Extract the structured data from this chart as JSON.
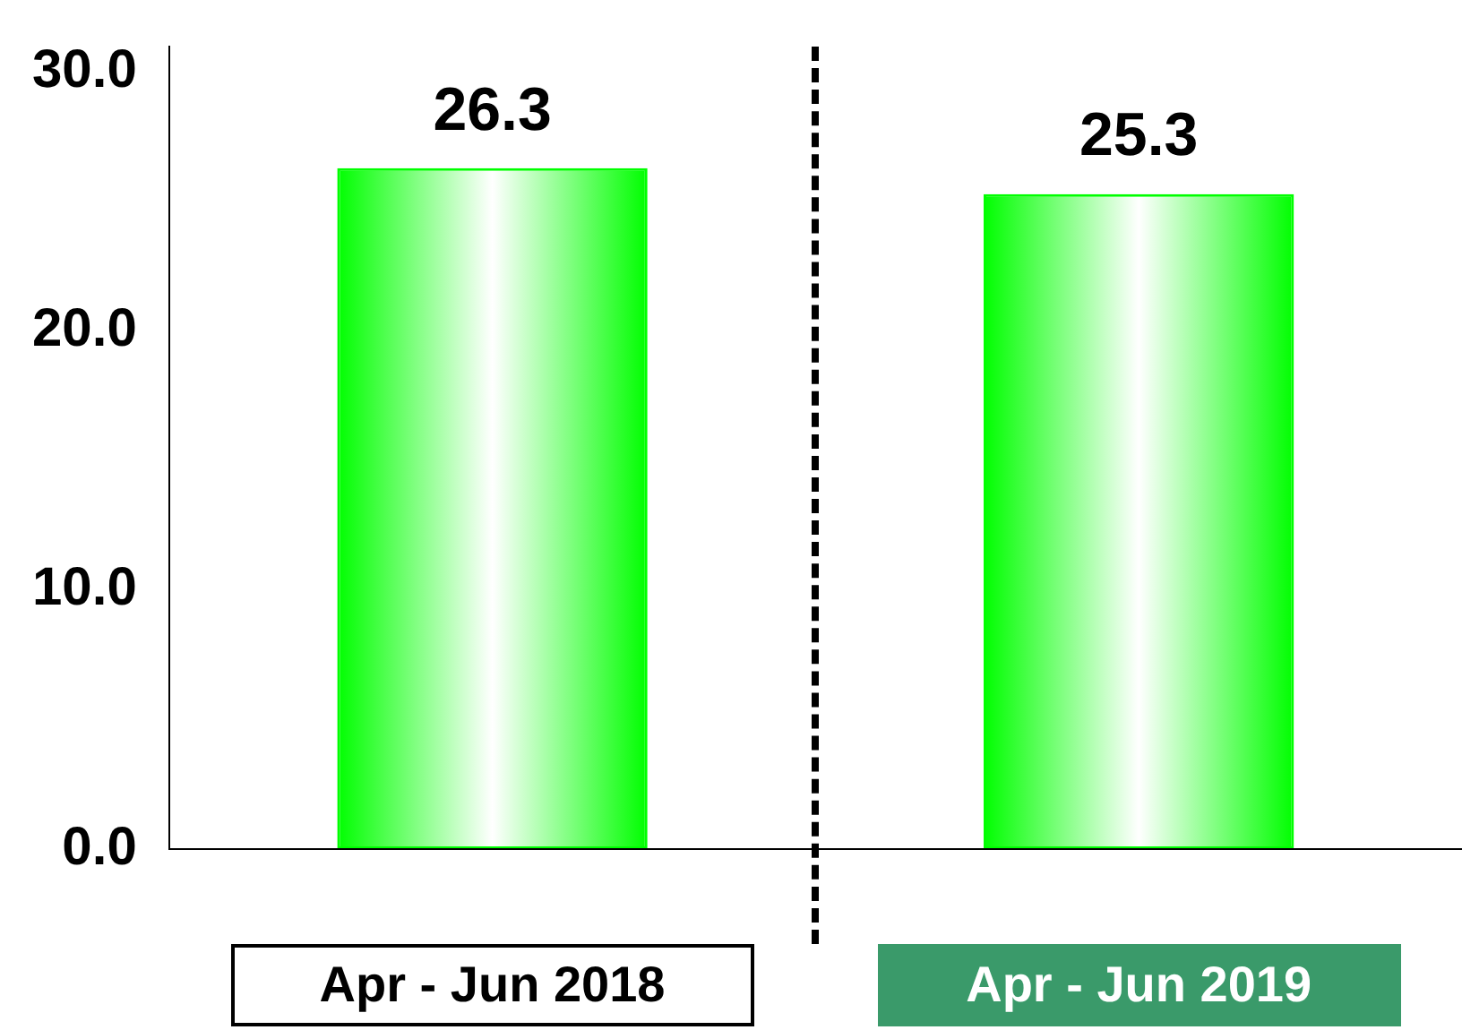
{
  "chart_data": {
    "type": "bar",
    "categories": [
      "Apr - Jun 2018",
      "Apr - Jun 2019"
    ],
    "values": [
      26.3,
      25.3
    ],
    "color": "#00ff00",
    "ylim": [
      0,
      31
    ],
    "yticks": [
      {
        "value": 0,
        "label": "0.0"
      },
      {
        "value": 10,
        "label": "10.0"
      },
      {
        "value": 20,
        "label": "20.0"
      },
      {
        "value": 30,
        "label": "30.0"
      }
    ],
    "grid": false,
    "legend": false,
    "data_labels": true
  }
}
